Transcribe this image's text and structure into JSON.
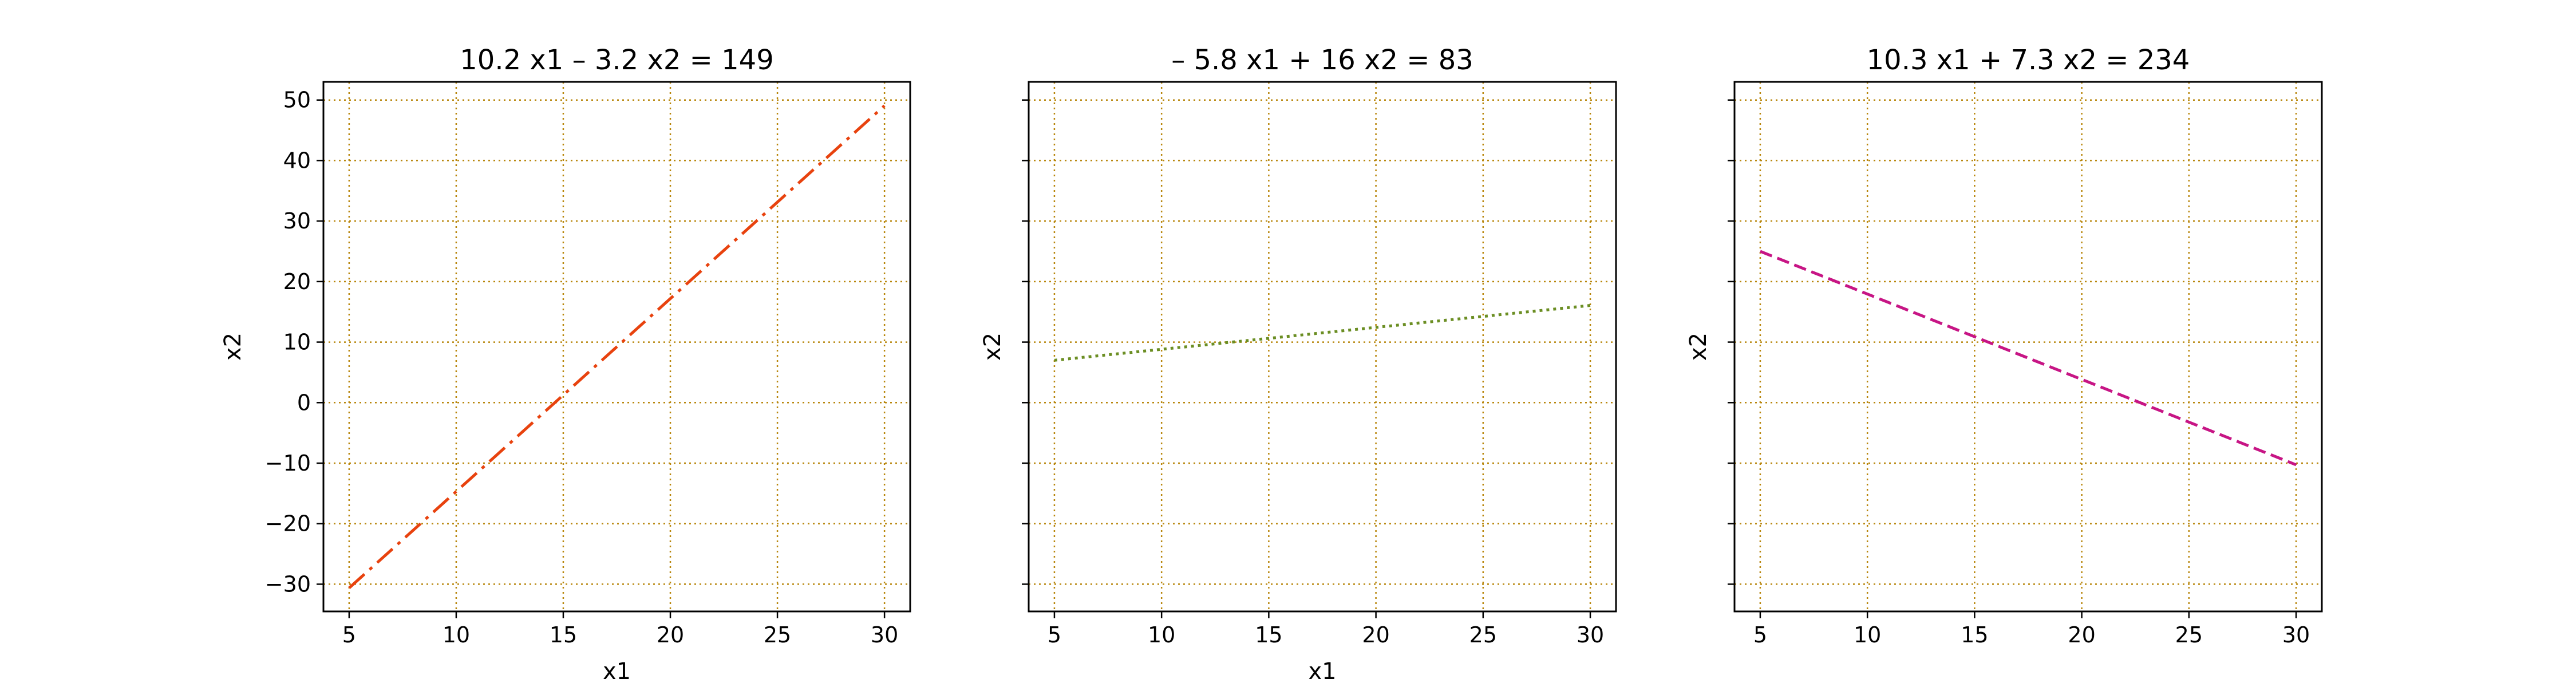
{
  "chart_data": [
    {
      "type": "line",
      "title": "10.2 x1 – 3.2 x2 = 149",
      "xlabel": "x1",
      "ylabel": "x2",
      "xlim": [
        3.8,
        31.2
      ],
      "ylim": [
        -34.5,
        53
      ],
      "xticks": [
        5,
        10,
        15,
        20,
        25,
        30
      ],
      "yticks": [
        -30,
        -20,
        -10,
        0,
        10,
        20,
        30,
        40,
        50
      ],
      "ytick_labels_shown": true,
      "xlabel_shown": true,
      "grid": true,
      "grid_color": "#b8860b",
      "series": [
        {
          "x": [
            5,
            30
          ],
          "y": [
            -30.625,
            49.063
          ],
          "color": "#e8420e",
          "linestyle": "dashdot"
        }
      ]
    },
    {
      "type": "line",
      "title": "– 5.8 x1 + 16 x2 = 83",
      "xlabel": "x1",
      "ylabel": "x2",
      "xlim": [
        3.8,
        31.2
      ],
      "ylim": [
        -34.5,
        53
      ],
      "xticks": [
        5,
        10,
        15,
        20,
        25,
        30
      ],
      "yticks": [
        -30,
        -20,
        -10,
        0,
        10,
        20,
        30,
        40,
        50
      ],
      "ytick_labels_shown": false,
      "xlabel_shown": true,
      "grid": true,
      "grid_color": "#b8860b",
      "series": [
        {
          "x": [
            5,
            30
          ],
          "y": [
            7.0,
            16.06
          ],
          "color": "#6b8e23",
          "linestyle": "dotted"
        }
      ]
    },
    {
      "type": "line",
      "title": "10.3 x1 + 7.3 x2 = 234",
      "xlabel": "",
      "ylabel": "x2",
      "xlim": [
        3.8,
        31.2
      ],
      "ylim": [
        -34.5,
        53
      ],
      "xticks": [
        5,
        10,
        15,
        20,
        25,
        30
      ],
      "yticks": [
        -30,
        -20,
        -10,
        0,
        10,
        20,
        30,
        40,
        50
      ],
      "ytick_labels_shown": false,
      "xlabel_shown": false,
      "grid": true,
      "grid_color": "#b8860b",
      "series": [
        {
          "x": [
            5,
            30
          ],
          "y": [
            25.0,
            -10.27
          ],
          "color": "#c71585",
          "linestyle": "dashed"
        }
      ]
    }
  ]
}
